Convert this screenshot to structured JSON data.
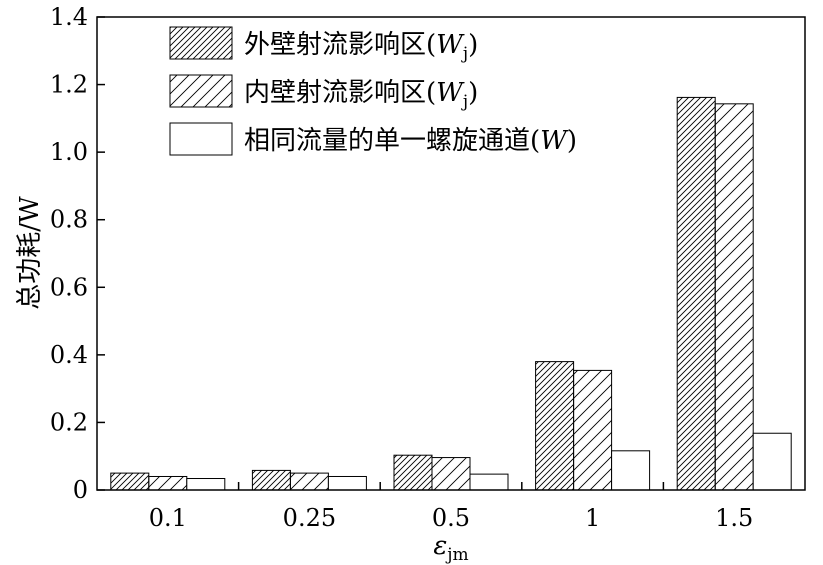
{
  "chart_data": {
    "type": "bar",
    "categories": [
      "0.1",
      "0.25",
      "0.5",
      "1",
      "1.5"
    ],
    "series": [
      {
        "name": "外壁射流影响区(Wj)",
        "values": [
          0.05,
          0.058,
          0.103,
          0.38,
          1.162
        ],
        "pattern": "hatch-dense"
      },
      {
        "name": "内壁射流影响区(Wj)",
        "values": [
          0.04,
          0.05,
          0.096,
          0.354,
          1.143
        ],
        "pattern": "hatch-sparse"
      },
      {
        "name": "相同流量的单一螺旋通道(W)",
        "values": [
          0.034,
          0.04,
          0.047,
          0.116,
          0.168
        ],
        "pattern": "empty"
      }
    ],
    "legend": [
      {
        "prefix": "外壁射流影响区(",
        "var": "W",
        "sub": "j",
        "suffix": ")"
      },
      {
        "prefix": "内壁射流影响区(",
        "var": "W",
        "sub": "j",
        "suffix": ")"
      },
      {
        "prefix": "相同流量的单一螺旋通道(",
        "var": "W",
        "sub": "",
        "suffix": ")"
      }
    ],
    "ylabel": "总功耗/W",
    "xlabel": {
      "var": "ε",
      "sub": "jm"
    },
    "ylim": [
      0,
      1.4
    ],
    "yticks": [
      "0",
      "0.2",
      "0.4",
      "0.6",
      "0.8",
      "1.0",
      "1.2",
      "1.4"
    ],
    "legend_position": "top-left",
    "grid": false
  }
}
